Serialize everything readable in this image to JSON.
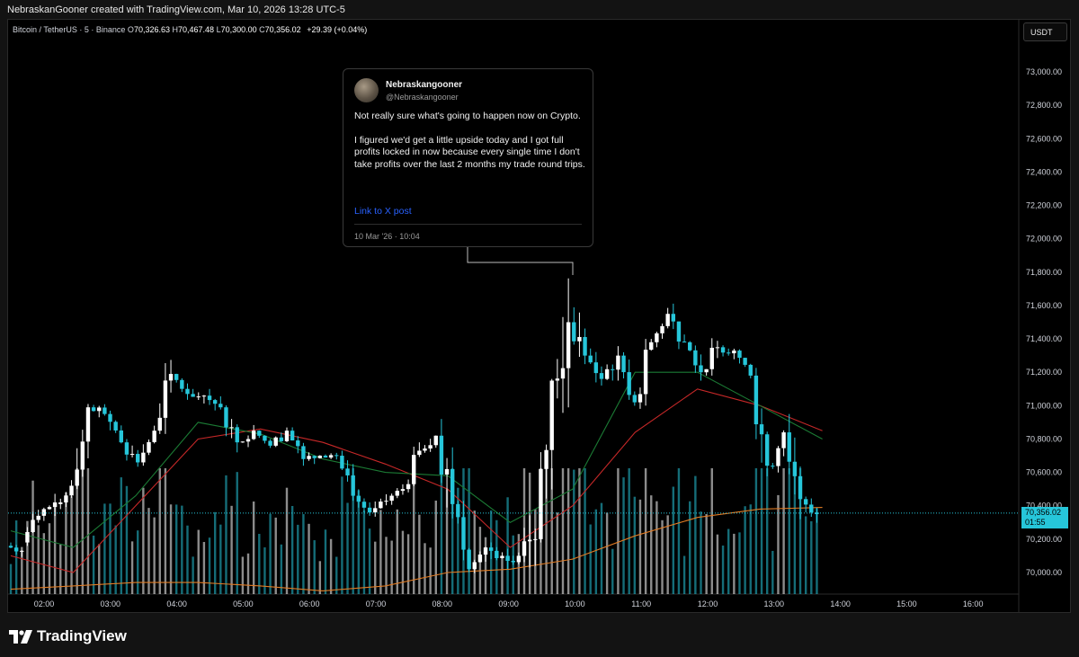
{
  "header": {
    "created_line": "NebraskanGooner created with TradingView.com, Mar 10, 2026 13:28 UTC-5"
  },
  "legend": {
    "symbol": "Bitcoin / TetherUS · 5 · Binance",
    "open_label": "O",
    "open": "70,326.63",
    "high_label": "H",
    "high": "70,467.48",
    "low_label": "L",
    "low": "70,300.00",
    "close_label": "C",
    "close": "70,356.02",
    "change": "+29.39 (+0.04%)"
  },
  "currency_button": {
    "label": "USDT"
  },
  "price_tag": {
    "price": "70,356.02",
    "countdown": "01:55"
  },
  "tweet": {
    "display_name": "Nebraskangooner",
    "handle": "@Nebraskangooner",
    "paragraph_1": "Not really sure what's going to happen now on Crypto.",
    "paragraph_2": "I figured we'd get a little upside today and I got full profits locked in now because every single time I don't take profits over the last 2 months my trade round trips.",
    "link_text": "Link to X post",
    "date": "10 Mar '26 · 10:04"
  },
  "branding": {
    "logo_text": "TradingView"
  },
  "colors": {
    "up": "#ffffff",
    "down": "#26c6da",
    "ema_fast": "#1b7a34",
    "ema_slow": "#c62828",
    "ema_long": "#e07b24",
    "price_line": "#26c6da"
  },
  "chart_data": {
    "type": "candlestick",
    "y_ticks": [
      73000,
      72800,
      72600,
      72400,
      72200,
      72000,
      71800,
      71600,
      71400,
      71200,
      71000,
      70800,
      70600,
      70400,
      70200,
      70000
    ],
    "y_tick_labels": [
      "73,000.00",
      "72,800.00",
      "72,600.00",
      "72,400.00",
      "72,200.00",
      "72,000.00",
      "71,800.00",
      "71,600.00",
      "71,400.00",
      "71,200.00",
      "71,000.00",
      "70,800.00",
      "70,600.00",
      "70,400.00",
      "70,200.00",
      "70,000.00"
    ],
    "x_tick_labels": [
      "02:00",
      "03:00",
      "04:00",
      "05:00",
      "06:00",
      "07:00",
      "08:00",
      "09:00",
      "10:00",
      "11:00",
      "12:00",
      "13:00",
      "14:00",
      "15:00",
      "16:00"
    ],
    "ylim": [
      69880,
      73130
    ],
    "current_price": 70356.02,
    "ema_fast": [
      [
        70250,
        70150
      ],
      [
        70460,
        70460
      ],
      [
        70850,
        70900
      ],
      [
        70830,
        70830
      ],
      [
        70800,
        70680
      ],
      [
        70650,
        70600
      ],
      [
        70840,
        70580
      ],
      [
        70450,
        70300
      ],
      [
        70130,
        70500
      ],
      [
        71050,
        71200
      ],
      [
        71100,
        71200
      ],
      [
        71300,
        71000
      ],
      [
        70800,
        70800
      ]
    ],
    "ema_slow": [
      [
        70100,
        70000
      ],
      [
        70250,
        70400
      ],
      [
        70600,
        70800
      ],
      [
        70950,
        70860
      ],
      [
        70830,
        70780
      ],
      [
        70740,
        70650
      ],
      [
        70600,
        70500
      ],
      [
        70330,
        70150
      ],
      [
        70180,
        70400
      ],
      [
        70650,
        70840
      ],
      [
        71000,
        71100
      ],
      [
        71220,
        71000
      ],
      [
        70950,
        70850
      ]
    ],
    "ema_long": [
      [
        69900,
        69920
      ],
      [
        69940,
        69940
      ],
      [
        69940,
        69940
      ],
      [
        69920,
        69920
      ],
      [
        69880,
        69890
      ],
      [
        69900,
        69920
      ],
      [
        69950,
        70000
      ],
      [
        70010,
        70020
      ],
      [
        70040,
        70080
      ],
      [
        70150,
        70220
      ],
      [
        70280,
        70330
      ],
      [
        70360,
        70380
      ],
      [
        70390,
        70390
      ]
    ],
    "candles_hourly": [
      [
        70160,
        70130,
        70030,
        70180
      ],
      [
        70180,
        70340,
        70120,
        70410
      ],
      [
        70340,
        70420,
        70300,
        70520
      ],
      [
        70410,
        70520,
        70380,
        70580
      ],
      [
        70520,
        70990,
        70500,
        71020
      ],
      [
        70990,
        70950,
        70880,
        71050
      ],
      [
        70950,
        70780,
        70700,
        70970
      ],
      [
        70780,
        70660,
        70590,
        70800
      ],
      [
        70660,
        70850,
        70640,
        70880
      ],
      [
        70850,
        71190,
        70830,
        71280
      ],
      [
        71190,
        71070,
        71010,
        71200
      ],
      [
        71070,
        71060,
        70930,
        71100
      ],
      [
        71060,
        70990,
        70900,
        71100
      ],
      [
        70990,
        70780,
        70720,
        71020
      ],
      [
        70780,
        70850,
        70740,
        70900
      ],
      [
        70850,
        70760,
        70700,
        70880
      ],
      [
        70760,
        70850,
        70700,
        70890
      ],
      [
        70850,
        70680,
        70640,
        70870
      ],
      [
        70680,
        70700,
        70560,
        70720
      ],
      [
        70700,
        70700,
        70640,
        70740
      ],
      [
        70700,
        70460,
        70430,
        70730
      ],
      [
        70460,
        70360,
        70340,
        70500
      ],
      [
        70360,
        70430,
        70320,
        70480
      ],
      [
        70430,
        70500,
        70400,
        70530
      ],
      [
        70500,
        70730,
        70480,
        70780
      ],
      [
        70730,
        70820,
        70700,
        70860
      ],
      [
        70820,
        70410,
        70050,
        70920
      ],
      [
        70410,
        70020,
        69980,
        70430
      ],
      [
        70020,
        70150,
        69950,
        70180
      ],
      [
        70150,
        70100,
        70000,
        70220
      ],
      [
        70100,
        70100,
        69930,
        70160
      ],
      [
        70100,
        70200,
        69900,
        70560
      ],
      [
        70200,
        71150,
        70180,
        71160
      ],
      [
        71150,
        71500,
        70450,
        71780
      ],
      [
        71500,
        71300,
        71150,
        71760
      ],
      [
        71300,
        71160,
        71100,
        71400
      ],
      [
        71160,
        71300,
        71150,
        71450
      ],
      [
        71300,
        71020,
        70980,
        71320
      ],
      [
        71020,
        71380,
        70950,
        71400
      ],
      [
        71380,
        71550,
        71350,
        71600
      ],
      [
        71550,
        71380,
        71330,
        71700
      ],
      [
        71380,
        71200,
        71150,
        71420
      ],
      [
        71200,
        71350,
        71180,
        71450
      ],
      [
        71350,
        71330,
        71270,
        71420
      ],
      [
        71330,
        71180,
        71150,
        71350
      ],
      [
        71180,
        70640,
        70530,
        71250
      ],
      [
        70640,
        70840,
        70450,
        70920
      ],
      [
        70840,
        70440,
        70300,
        70950
      ],
      [
        70440,
        70350,
        70230,
        70470
      ]
    ]
  }
}
